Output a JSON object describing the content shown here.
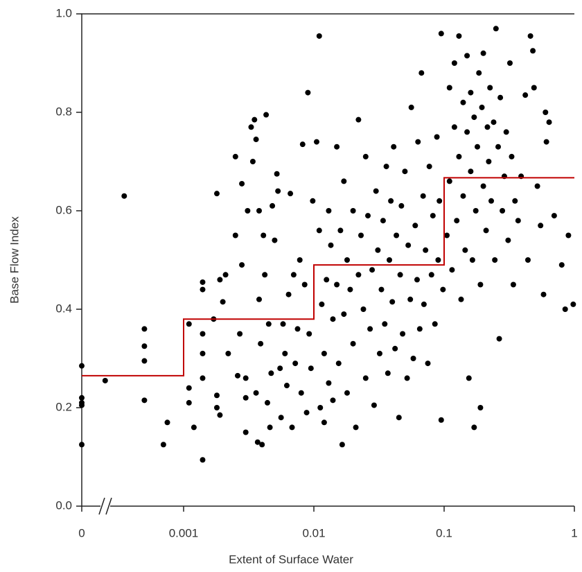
{
  "chart_data": {
    "type": "scatter",
    "x_label": "Extent of Surface Water",
    "y_label": "Base Flow Index",
    "x_scale": "log",
    "xlim": [
      0,
      1
    ],
    "xticks": [
      0,
      0.001,
      0.01,
      0.1,
      1
    ],
    "ylim": [
      0,
      1
    ],
    "yticks": [
      {
        "value": 0,
        "label": "0.0"
      },
      0.2,
      0.4,
      0.6,
      0.8,
      {
        "value": 1,
        "label": "1.0"
      }
    ],
    "color": "#000000",
    "x": [
      0,
      0,
      0,
      0,
      0,
      0.00025,
      0.00035,
      0.0005,
      0.0005,
      0.0005,
      0.0005,
      0.00075,
      0.0007,
      0.0011,
      0.0011,
      0.0012,
      0.0011,
      0.0014,
      0.0014,
      0.0014,
      0.0014,
      0.0014,
      0.0014,
      0.0017,
      0.0018,
      0.0018,
      0.0018,
      0.0019,
      0.0019,
      0.002,
      0.0021,
      0.0022,
      0.0025,
      0.0025,
      0.0026,
      0.0027,
      0.0028,
      0.0028,
      0.003,
      0.003,
      0.003,
      0.0031,
      0.0033,
      0.0034,
      0.0035,
      0.0036,
      0.0036,
      0.0037,
      0.0038,
      0.0038,
      0.0039,
      0.004,
      0.0041,
      0.0042,
      0.0043,
      0.0044,
      0.0045,
      0.0046,
      0.0047,
      0.0048,
      0.005,
      0.0052,
      0.0053,
      0.0055,
      0.0056,
      0.0058,
      0.006,
      0.0062,
      0.0064,
      0.0066,
      0.0068,
      0.007,
      0.0072,
      0.0075,
      0.0078,
      0.008,
      0.0082,
      0.0085,
      0.0088,
      0.009,
      0.0092,
      0.0095,
      0.0098,
      0.0105,
      0.011,
      0.011,
      0.0112,
      0.0115,
      0.012,
      0.012,
      0.0125,
      0.013,
      0.013,
      0.0135,
      0.014,
      0.014,
      0.015,
      0.015,
      0.0155,
      0.016,
      0.0165,
      0.017,
      0.017,
      0.018,
      0.018,
      0.019,
      0.02,
      0.02,
      0.021,
      0.022,
      0.022,
      0.023,
      0.024,
      0.025,
      0.025,
      0.026,
      0.027,
      0.028,
      0.029,
      0.03,
      0.031,
      0.032,
      0.033,
      0.034,
      0.035,
      0.036,
      0.037,
      0.038,
      0.039,
      0.04,
      0.041,
      0.042,
      0.043,
      0.045,
      0.046,
      0.047,
      0.048,
      0.05,
      0.052,
      0.053,
      0.055,
      0.056,
      0.058,
      0.06,
      0.062,
      0.063,
      0.065,
      0.067,
      0.069,
      0.07,
      0.072,
      0.075,
      0.077,
      0.08,
      0.082,
      0.085,
      0.088,
      0.09,
      0.092,
      0.095,
      0.095,
      0.098,
      0.105,
      0.11,
      0.11,
      0.115,
      0.12,
      0.12,
      0.125,
      0.13,
      0.13,
      0.135,
      0.14,
      0.14,
      0.145,
      0.15,
      0.15,
      0.155,
      0.16,
      0.16,
      0.165,
      0.17,
      0.17,
      0.175,
      0.18,
      0.185,
      0.19,
      0.19,
      0.195,
      0.2,
      0.2,
      0.21,
      0.215,
      0.22,
      0.225,
      0.23,
      0.24,
      0.245,
      0.25,
      0.26,
      0.265,
      0.27,
      0.28,
      0.29,
      0.3,
      0.31,
      0.32,
      0.33,
      0.34,
      0.35,
      0.37,
      0.39,
      0.42,
      0.44,
      0.46,
      0.48,
      0.49,
      0.52,
      0.55,
      0.58,
      0.6,
      0.61,
      0.64,
      0.7,
      0.8,
      0.85,
      0.9,
      0.98
    ],
    "values": [
      0.285,
      0.22,
      0.21,
      0.205,
      0.125,
      0.255,
      0.63,
      0.36,
      0.325,
      0.295,
      0.215,
      0.17,
      0.125,
      0.24,
      0.21,
      0.16,
      0.37,
      0.44,
      0.455,
      0.094,
      0.31,
      0.35,
      0.26,
      0.38,
      0.635,
      0.2,
      0.225,
      0.185,
      0.46,
      0.415,
      0.47,
      0.31,
      0.55,
      0.71,
      0.265,
      0.35,
      0.655,
      0.49,
      0.22,
      0.15,
      0.26,
      0.6,
      0.77,
      0.7,
      0.785,
      0.745,
      0.23,
      0.13,
      0.42,
      0.6,
      0.33,
      0.125,
      0.55,
      0.47,
      0.795,
      0.21,
      0.37,
      0.16,
      0.27,
      0.61,
      0.54,
      0.675,
      0.64,
      0.28,
      0.18,
      0.37,
      0.31,
      0.245,
      0.43,
      0.635,
      0.16,
      0.47,
      0.29,
      0.36,
      0.5,
      0.23,
      0.735,
      0.45,
      0.19,
      0.84,
      0.35,
      0.28,
      0.62,
      0.74,
      0.955,
      0.56,
      0.2,
      0.41,
      0.31,
      0.17,
      0.46,
      0.25,
      0.6,
      0.53,
      0.38,
      0.215,
      0.73,
      0.45,
      0.29,
      0.56,
      0.125,
      0.66,
      0.39,
      0.5,
      0.23,
      0.44,
      0.6,
      0.33,
      0.16,
      0.785,
      0.47,
      0.55,
      0.4,
      0.71,
      0.26,
      0.59,
      0.36,
      0.48,
      0.205,
      0.64,
      0.52,
      0.31,
      0.44,
      0.58,
      0.37,
      0.69,
      0.27,
      0.5,
      0.62,
      0.415,
      0.73,
      0.32,
      0.55,
      0.18,
      0.47,
      0.61,
      0.35,
      0.68,
      0.26,
      0.53,
      0.42,
      0.81,
      0.3,
      0.57,
      0.46,
      0.74,
      0.36,
      0.88,
      0.63,
      0.41,
      0.52,
      0.29,
      0.69,
      0.47,
      0.59,
      0.37,
      0.75,
      0.5,
      0.62,
      0.96,
      0.175,
      0.44,
      0.55,
      0.85,
      0.66,
      0.48,
      0.77,
      0.9,
      0.58,
      0.71,
      0.955,
      0.42,
      0.82,
      0.63,
      0.52,
      0.915,
      0.76,
      0.26,
      0.68,
      0.84,
      0.5,
      0.79,
      0.16,
      0.6,
      0.73,
      0.88,
      0.45,
      0.2,
      0.81,
      0.65,
      0.92,
      0.56,
      0.77,
      0.7,
      0.85,
      0.62,
      0.78,
      0.5,
      0.97,
      0.73,
      0.34,
      0.83,
      0.6,
      0.67,
      0.76,
      0.54,
      0.9,
      0.71,
      0.45,
      0.62,
      0.58,
      0.67,
      0.835,
      0.5,
      0.955,
      0.925,
      0.85,
      0.65,
      0.57,
      0.43,
      0.8,
      0.74,
      0.78,
      0.59,
      0.49,
      0.4,
      0.55,
      0.41
    ],
    "step": {
      "color": "#c00000",
      "x": [
        0,
        0.001,
        0.001,
        0.01,
        0.01,
        0.1,
        0.1,
        1
      ],
      "values": [
        0.265,
        0.265,
        0.38,
        0.38,
        0.49,
        0.49,
        0.667,
        0.667
      ]
    }
  }
}
